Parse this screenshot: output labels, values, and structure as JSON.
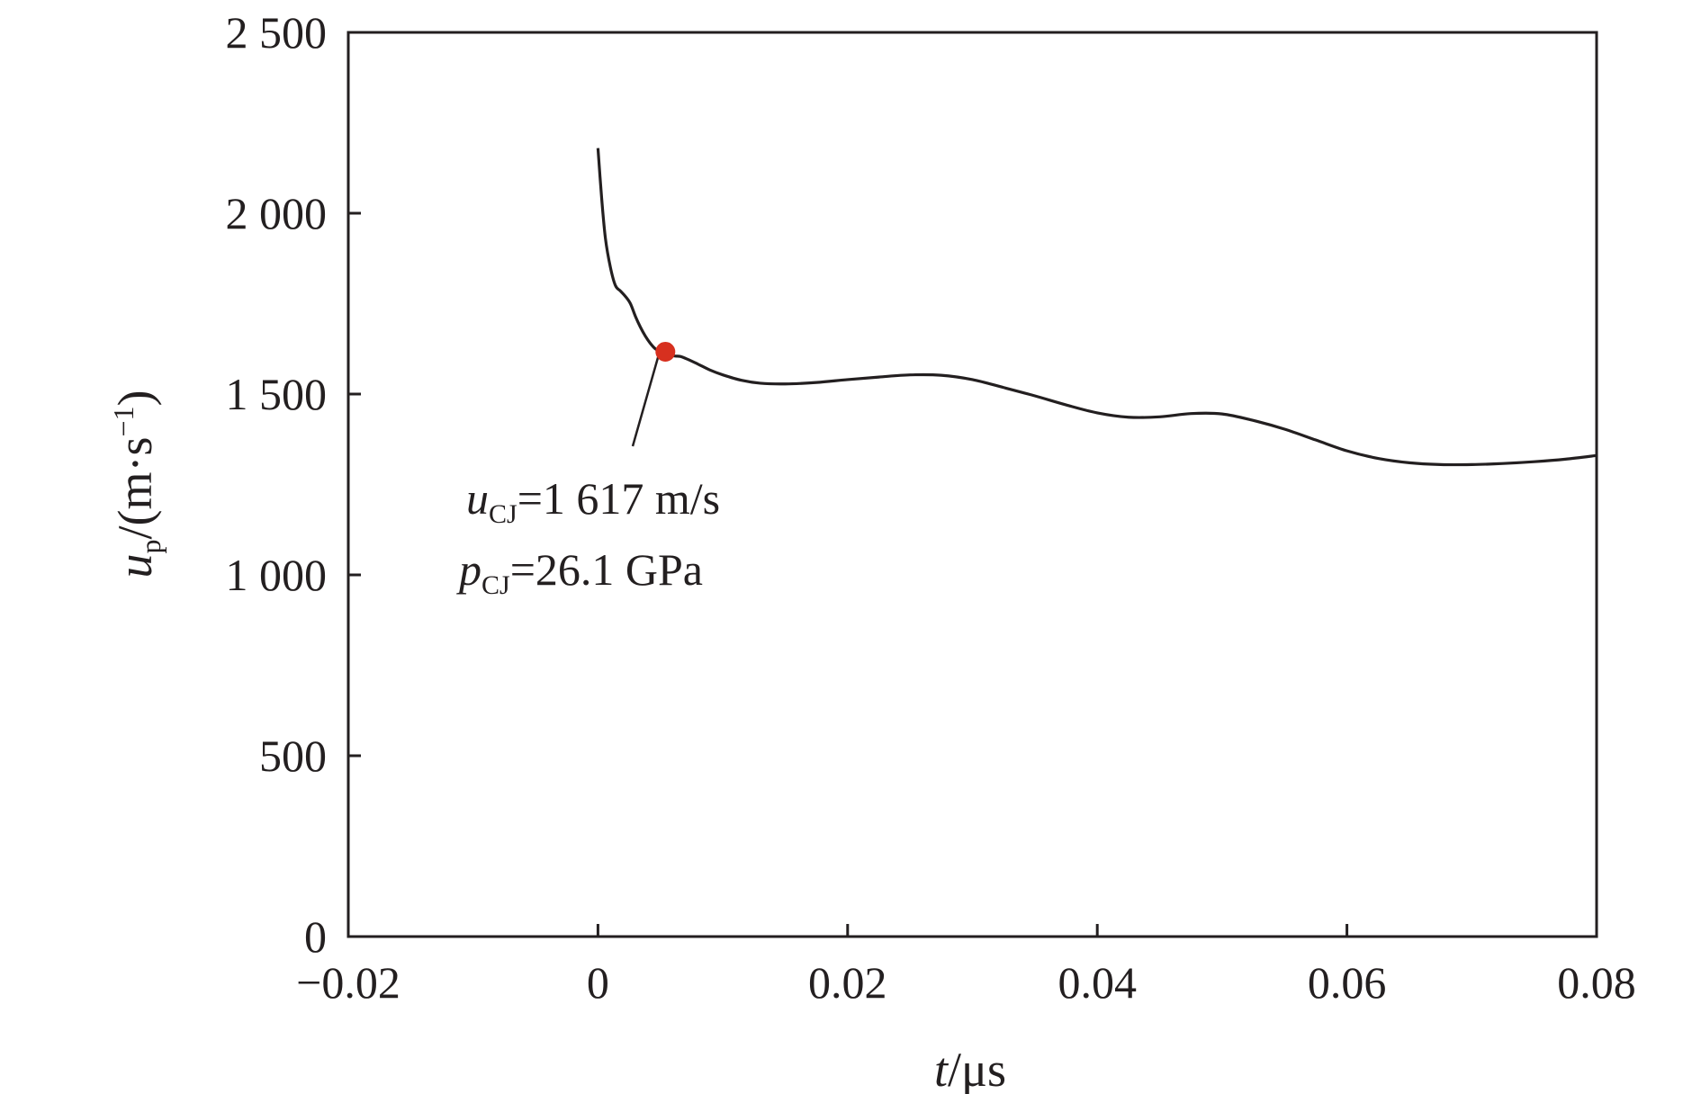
{
  "chart_data": {
    "type": "line",
    "title": "",
    "xlabel": {
      "var": "t",
      "unit": "/μs"
    },
    "ylabel": {
      "var": "u",
      "sub": "p",
      "unit_prefix": "/(m·s",
      "unit_exp": "−1",
      "unit_suffix": ")"
    },
    "xlim": [
      -0.02,
      0.08
    ],
    "ylim": [
      0,
      2500
    ],
    "xticks": [
      -0.02,
      0,
      0.02,
      0.04,
      0.06,
      0.08
    ],
    "xtick_labels": [
      "−0.02",
      "0",
      "0.02",
      "0.04",
      "0.06",
      "0.08"
    ],
    "yticks": [
      0,
      500,
      1000,
      1500,
      2000,
      2500
    ],
    "ytick_labels": [
      "0",
      "500",
      "1 000",
      "1 500",
      "2 000",
      "2 500"
    ],
    "grid": false,
    "series": [
      {
        "color": "#231f20",
        "x": [
          0.0,
          0.0003,
          0.0006,
          0.001,
          0.0014,
          0.0018,
          0.0022,
          0.0026,
          0.003,
          0.0034,
          0.0038,
          0.0042,
          0.0046,
          0.005,
          0.0054,
          0.0058,
          0.0062,
          0.0066,
          0.0072,
          0.008,
          0.009,
          0.01,
          0.0115,
          0.013,
          0.015,
          0.0175,
          0.02,
          0.0225,
          0.025,
          0.0275,
          0.03,
          0.0325,
          0.035,
          0.0375,
          0.04,
          0.0425,
          0.045,
          0.0475,
          0.05,
          0.0525,
          0.055,
          0.0575,
          0.06,
          0.0625,
          0.065,
          0.0675,
          0.07,
          0.0725,
          0.075,
          0.0775,
          0.08
        ],
        "y": [
          2180,
          2040,
          1930,
          1850,
          1800,
          1785,
          1770,
          1750,
          1715,
          1685,
          1660,
          1640,
          1625,
          1617,
          1612,
          1607,
          1605,
          1604,
          1596,
          1583,
          1566,
          1553,
          1538,
          1530,
          1528,
          1532,
          1540,
          1547,
          1553,
          1552,
          1540,
          1518,
          1495,
          1470,
          1448,
          1436,
          1437,
          1446,
          1445,
          1427,
          1403,
          1373,
          1343,
          1322,
          1310,
          1305,
          1305,
          1308,
          1313,
          1320,
          1330
        ]
      }
    ],
    "annotations": [
      {
        "kind": "point",
        "x": 0.0054,
        "y": 1617,
        "color": "#d7301f"
      },
      {
        "kind": "text",
        "var": "u",
        "sub": "CJ",
        "text": "=1 617 m/s"
      },
      {
        "kind": "text",
        "var": "p",
        "sub": "CJ",
        "text": "=26.1 GPa"
      }
    ]
  }
}
